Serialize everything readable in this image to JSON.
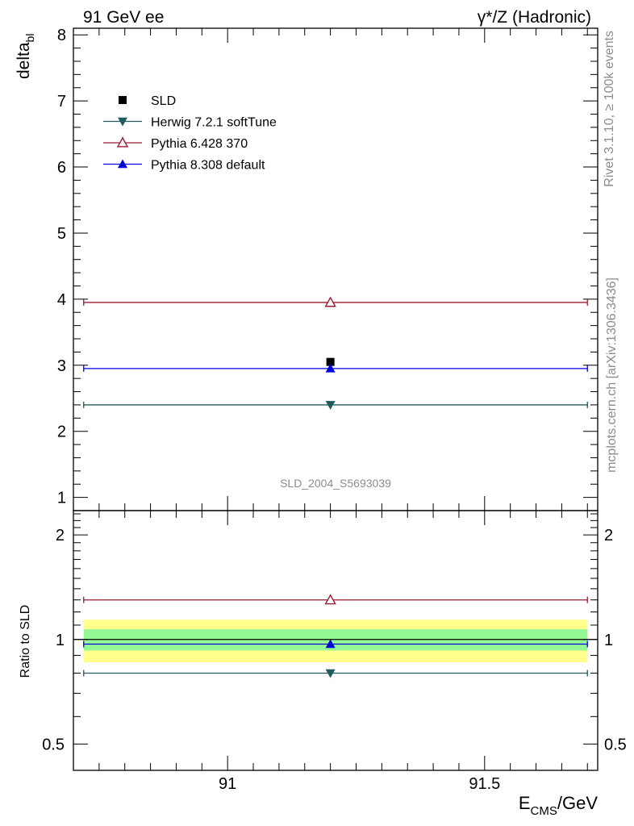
{
  "header": {
    "left": "91 GeV ee",
    "right": "γ*/Z (Hadronic)"
  },
  "side_labels": {
    "rivet": "Rivet 3.1.10, ≥ 100k events",
    "mcplots": "mcplots.cern.ch [arXiv:1306.3436]"
  },
  "watermark": "SLD_2004_S5693039",
  "chart_data": {
    "type": "scatter",
    "ylabel_main": "delta",
    "ylabel_main_sub": "bl",
    "ylabel_ratio": "Ratio to SLD",
    "xlabel_main": "E",
    "xlabel_sub": "CMS",
    "xlabel_unit": "/GeV",
    "xlim": [
      90.7,
      91.72
    ],
    "ylim_main": [
      0.8,
      8.1
    ],
    "ylim_ratio": [
      0.42,
      2.35
    ],
    "x_ticks": [
      {
        "v": 91,
        "label": "91"
      },
      {
        "v": 91.5,
        "label": "91.5"
      }
    ],
    "y_ticks_main": [
      1,
      2,
      3,
      4,
      5,
      6,
      7,
      8
    ],
    "y_ticks_ratio": [
      {
        "v": 0.5,
        "label": "0.5"
      },
      {
        "v": 1,
        "label": "1"
      },
      {
        "v": 2,
        "label": "2"
      }
    ],
    "x_point": 91.2,
    "x_range": [
      90.72,
      91.7
    ],
    "ratio_band_green": [
      0.93,
      1.07
    ],
    "ratio_band_yellow": [
      0.86,
      1.14
    ],
    "series": [
      {
        "name": "SLD",
        "marker": "square",
        "color": "#000000",
        "y": 3.05,
        "ratio": 1.0,
        "line": false
      },
      {
        "name": "Herwig 7.2.1 softTune",
        "marker": "triangle-down",
        "color": "#1f5a5f",
        "y": 2.4,
        "ratio": 0.8,
        "line": true
      },
      {
        "name": "Pythia 6.428 370",
        "marker": "triangle-open",
        "color": "#9b1b30",
        "y": 3.95,
        "ratio": 1.3,
        "line": true
      },
      {
        "name": "Pythia 8.308 default",
        "marker": "triangle-up",
        "color": "#0000dd",
        "y": 2.95,
        "ratio": 0.97,
        "line": true
      }
    ]
  }
}
